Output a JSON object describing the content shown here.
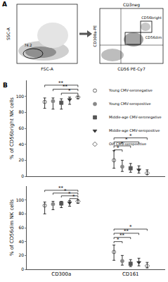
{
  "panel_a": {
    "label": "A",
    "gate_plot": {
      "x_label": "FSC-A",
      "y_label": "SSC-A",
      "gate_value": "74.2"
    },
    "nk_plot": {
      "title": "CD3neg",
      "x_label": "CD56 PE-Cy7",
      "y_label": "CD300a-PE",
      "gates": [
        "CD56bright",
        "CD56dim"
      ]
    }
  },
  "chart_data": [
    {
      "type": "scatter",
      "panel_label": "B",
      "y_label": "% of CD56bright NK cells",
      "categories": [
        "CD300a",
        "CD161"
      ],
      "ylim": [
        0,
        120
      ],
      "yticks": [
        0,
        20,
        40,
        60,
        80,
        100
      ],
      "tick_labels": "y",
      "legend": "top right",
      "series": [
        {
          "name": "Young CMV-seronegative",
          "marker": "circle-open",
          "color": "#444444",
          "values": [
            93,
            20
          ],
          "errors_minus": [
            8,
            10
          ],
          "errors_plus": [
            5,
            12
          ]
        },
        {
          "name": "Young CMV-seropositive",
          "marker": "circle",
          "color": "#888888",
          "values": [
            94,
            12
          ],
          "errors_minus": [
            10,
            6
          ],
          "errors_plus": [
            4,
            8
          ]
        },
        {
          "name": "Middle-age CMV-seronegative",
          "marker": "square",
          "color": "#555555",
          "values": [
            92,
            10
          ],
          "errors_minus": [
            8,
            5
          ],
          "errors_plus": [
            5,
            6
          ]
        },
        {
          "name": "Middle-age CMV-seropositive",
          "marker": "triangle-down",
          "color": "#333333",
          "values": [
            96,
            8
          ],
          "errors_minus": [
            6,
            4
          ],
          "errors_plus": [
            3,
            5
          ]
        },
        {
          "name": "Old CMV-seropositive",
          "marker": "diamond-open",
          "color": "#444444",
          "values": [
            99,
            4
          ],
          "errors_minus": [
            2,
            2
          ],
          "errors_plus": [
            1,
            4
          ]
        }
      ],
      "comparisons": [
        {
          "category": 0,
          "groups": [
            0,
            4
          ],
          "y": 114,
          "text": "**"
        },
        {
          "category": 0,
          "groups": [
            1,
            4
          ],
          "y": 109,
          "text": "**"
        },
        {
          "category": 0,
          "groups": [
            2,
            4
          ],
          "y": 104,
          "text": "*"
        },
        {
          "category": 1,
          "groups": [
            0,
            4
          ],
          "y": 48,
          "text": "*"
        },
        {
          "category": 1,
          "groups": [
            0,
            3
          ],
          "y": 43,
          "text": "*"
        },
        {
          "category": 1,
          "groups": [
            0,
            2
          ],
          "y": 38,
          "text": "*"
        },
        {
          "category": 1,
          "groups": [
            0,
            1
          ],
          "y": 33,
          "text": "*"
        }
      ]
    },
    {
      "type": "scatter",
      "y_label": "% of CD56dim NK cells",
      "categories": [
        "CD300a",
        "CD161"
      ],
      "ylim": [
        0,
        120
      ],
      "yticks": [
        0,
        20,
        40,
        60,
        80,
        100
      ],
      "series": [
        {
          "name": "Young CMV-seronegative",
          "marker": "circle-open",
          "color": "#444444",
          "values": [
            92,
            25
          ],
          "errors_minus": [
            12,
            12
          ],
          "errors_plus": [
            5,
            10
          ]
        },
        {
          "name": "Young CMV-seropositive",
          "marker": "circle",
          "color": "#888888",
          "values": [
            94,
            12
          ],
          "errors_minus": [
            8,
            6
          ],
          "errors_plus": [
            4,
            8
          ]
        },
        {
          "name": "Middle-age CMV-seronegative",
          "marker": "square",
          "color": "#555555",
          "values": [
            95,
            8
          ],
          "errors_minus": [
            6,
            4
          ],
          "errors_plus": [
            3,
            6
          ]
        },
        {
          "name": "Middle-age CMV-seropositive",
          "marker": "triangle-down",
          "color": "#333333",
          "values": [
            96,
            10
          ],
          "errors_minus": [
            5,
            5
          ],
          "errors_plus": [
            3,
            6
          ]
        },
        {
          "name": "Old CMV-seropositive",
          "marker": "diamond-open",
          "color": "#444444",
          "values": [
            98,
            5
          ],
          "errors_minus": [
            3,
            3
          ],
          "errors_plus": [
            2,
            5
          ]
        }
      ],
      "comparisons": [
        {
          "category": 0,
          "groups": [
            0,
            4
          ],
          "y": 114,
          "text": "**"
        },
        {
          "category": 0,
          "groups": [
            1,
            4
          ],
          "y": 110,
          "text": "*"
        },
        {
          "category": 0,
          "groups": [
            2,
            4
          ],
          "y": 106,
          "text": "*"
        },
        {
          "category": 0,
          "groups": [
            3,
            4
          ],
          "y": 102,
          "text": "*"
        },
        {
          "category": 1,
          "groups": [
            0,
            4
          ],
          "y": 58,
          "text": "*"
        },
        {
          "category": 1,
          "groups": [
            0,
            3
          ],
          "y": 52,
          "text": "**"
        },
        {
          "category": 1,
          "groups": [
            0,
            2
          ],
          "y": 46,
          "text": "**"
        },
        {
          "category": 1,
          "groups": [
            0,
            1
          ],
          "y": 40,
          "text": "*"
        }
      ]
    }
  ]
}
